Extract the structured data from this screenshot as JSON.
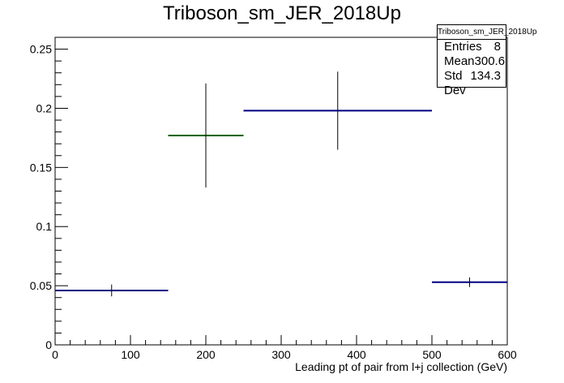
{
  "chart_data": {
    "type": "histogram",
    "title": "Triboson_sm_JER_2018Up",
    "xlabel": "Leading pt of pair from l+j collection (GeV)",
    "ylabel": "",
    "xlim": [
      0,
      600
    ],
    "ylim": [
      0,
      0.26
    ],
    "xticks": [
      0,
      100,
      200,
      300,
      400,
      500,
      600
    ],
    "yticks": [
      0,
      0.05,
      0.1,
      0.15,
      0.2,
      0.25
    ],
    "ytick_labels": [
      "0",
      "0.05",
      "0.1",
      "0.15",
      "0.2",
      "0.25"
    ],
    "grid": false,
    "bins": [
      {
        "xlow": 0,
        "xhigh": 150,
        "x": 75,
        "value": 0.046,
        "err": 0.005,
        "color": "#000080"
      },
      {
        "xlow": 150,
        "xhigh": 250,
        "x": 200,
        "value": 0.177,
        "err": 0.044,
        "color": "#006400"
      },
      {
        "xlow": 250,
        "xhigh": 500,
        "x": 375,
        "value": 0.198,
        "err": 0.033,
        "color": "#000080"
      },
      {
        "xlow": 500,
        "xhigh": 600,
        "x": 550,
        "value": 0.053,
        "err": 0.004,
        "color": "#000080"
      }
    ],
    "stats": {
      "title": "Triboson_sm_JER_2018Up",
      "entries_label": "Entries",
      "entries": "8",
      "mean_label": "Mean",
      "mean": "300.6",
      "stddev_label": "Std Dev",
      "stddev": "134.3"
    }
  }
}
